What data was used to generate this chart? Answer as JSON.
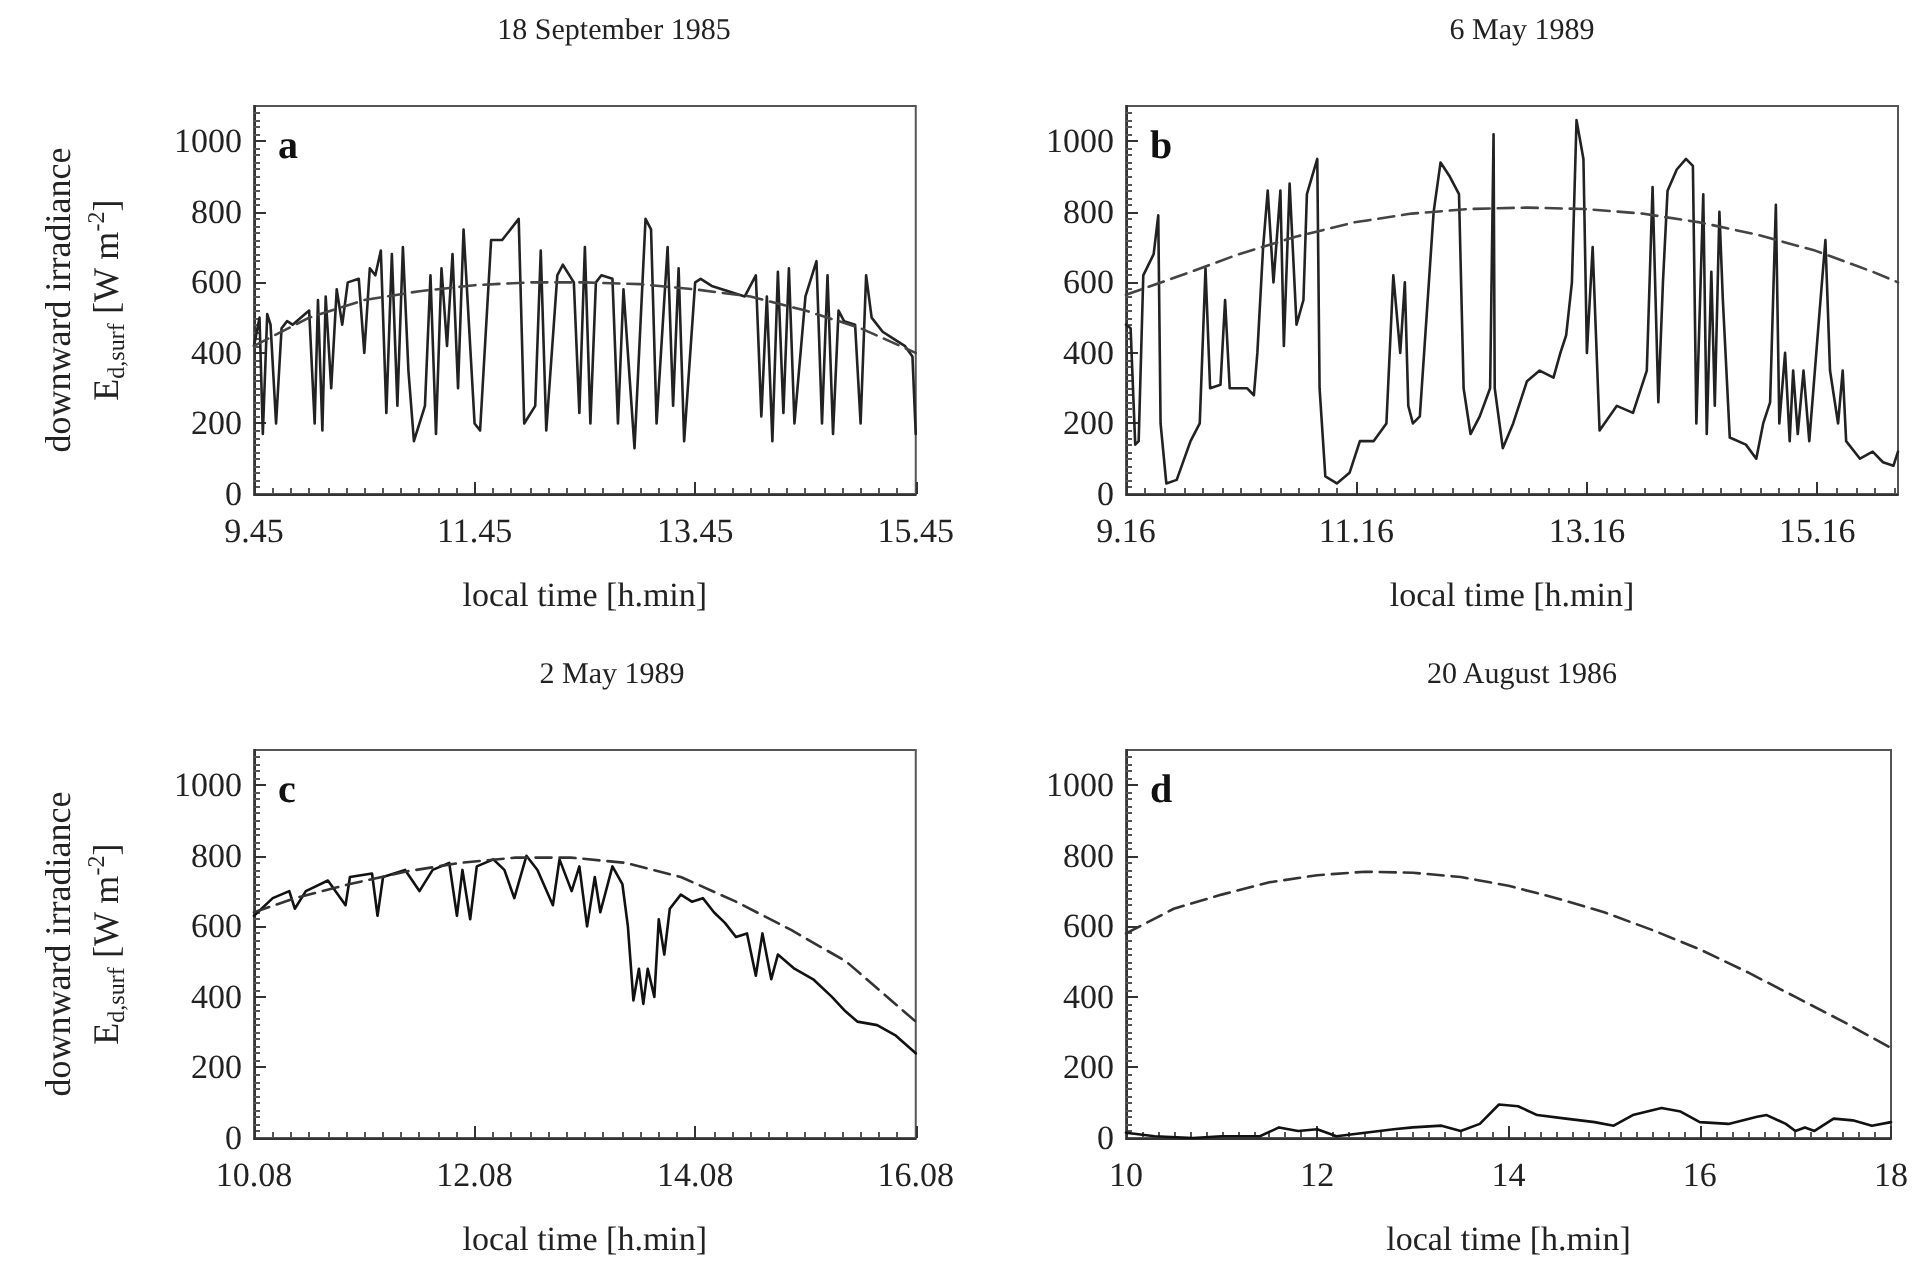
{
  "chart_data": [
    {
      "type": "line",
      "title": "18 September 1985",
      "xlabel": "local time [h.min]",
      "ylabel": "downward irradiance\nE$_{d,surf}$ [W m$^{-2}$]",
      "annotations": [
        "a"
      ],
      "marker": "none",
      "xlim": [
        9.45,
        15.45
      ],
      "xticks": [
        9.45,
        11.45,
        13.45,
        15.45
      ],
      "ylim": [
        0,
        1100
      ],
      "yticks": [
        0,
        200,
        400,
        600,
        800,
        1000
      ],
      "series": [
        {
          "color": "#222222",
          "line_style": "solid",
          "x": [
            9.45,
            9.5,
            9.53,
            9.57,
            9.6,
            9.65,
            9.7,
            9.75,
            9.8,
            9.95,
            10.0,
            10.03,
            10.07,
            10.1,
            10.15,
            10.2,
            10.25,
            10.3,
            10.4,
            10.45,
            10.5,
            10.55,
            10.6,
            10.65,
            10.7,
            10.75,
            10.8,
            10.85,
            10.9,
            11.0,
            11.05,
            11.1,
            11.15,
            11.2,
            11.25,
            11.3,
            11.35,
            11.45,
            11.5,
            11.6,
            11.7,
            11.85,
            11.9,
            12.0,
            12.05,
            12.1,
            12.2,
            12.25,
            12.35,
            12.4,
            12.45,
            12.5,
            12.55,
            12.6,
            12.7,
            12.75,
            12.8,
            12.9,
            13.0,
            13.05,
            13.1,
            13.2,
            13.25,
            13.3,
            13.35,
            13.45,
            13.5,
            13.6,
            13.7,
            13.8,
            13.9,
            14.0,
            14.05,
            14.1,
            14.15,
            14.2,
            14.25,
            14.3,
            14.35,
            14.45,
            14.55,
            14.6,
            14.65,
            14.7,
            14.75,
            14.8,
            14.9,
            14.95,
            15.0,
            15.05,
            15.15,
            15.25,
            15.35,
            15.42,
            15.45
          ],
          "values": [
            420,
            500,
            170,
            510,
            480,
            200,
            470,
            490,
            480,
            520,
            200,
            550,
            180,
            560,
            300,
            580,
            480,
            600,
            610,
            400,
            640,
            620,
            690,
            230,
            680,
            250,
            700,
            350,
            150,
            250,
            620,
            170,
            640,
            420,
            680,
            300,
            750,
            200,
            180,
            720,
            720,
            780,
            200,
            250,
            690,
            180,
            620,
            650,
            600,
            230,
            700,
            200,
            600,
            620,
            610,
            200,
            580,
            130,
            780,
            750,
            200,
            700,
            250,
            640,
            150,
            600,
            610,
            590,
            580,
            570,
            560,
            620,
            220,
            560,
            150,
            630,
            230,
            640,
            200,
            560,
            660,
            200,
            620,
            170,
            520,
            490,
            480,
            200,
            620,
            500,
            460,
            440,
            420,
            390,
            170
          ]
        },
        {
          "color": "#444444",
          "line_style": "dashed",
          "x": [
            9.45,
            9.95,
            10.45,
            10.95,
            11.45,
            11.95,
            12.45,
            12.95,
            13.45,
            13.95,
            14.45,
            14.95,
            15.45
          ],
          "values": [
            420,
            500,
            550,
            575,
            592,
            600,
            600,
            595,
            580,
            560,
            520,
            470,
            400
          ]
        }
      ]
    },
    {
      "type": "line",
      "title": "6 May 1989",
      "xlabel": "local time [h.min]",
      "annotations": [
        "b"
      ],
      "marker": "none",
      "xlim": [
        9.16,
        15.86
      ],
      "xticks": [
        9.16,
        11.16,
        13.16,
        15.16
      ],
      "ylim": [
        0,
        1100
      ],
      "yticks": [
        0,
        200,
        400,
        600,
        800,
        1000
      ],
      "series": [
        {
          "color": "#222222",
          "line_style": "solid",
          "x": [
            9.16,
            9.2,
            9.24,
            9.27,
            9.31,
            9.4,
            9.44,
            9.46,
            9.51,
            9.6,
            9.72,
            9.8,
            9.85,
            9.89,
            9.98,
            10.02,
            10.06,
            10.21,
            10.27,
            10.3,
            10.35,
            10.39,
            10.44,
            10.5,
            10.53,
            10.58,
            10.64,
            10.7,
            10.73,
            10.82,
            10.84,
            10.89,
            10.99,
            11.1,
            11.19,
            11.31,
            11.42,
            11.48,
            11.54,
            11.58,
            11.61,
            11.65,
            11.71,
            11.83,
            11.89,
            11.97,
            12.05,
            12.09,
            12.15,
            12.23,
            12.32,
            12.35,
            12.36,
            12.43,
            12.52,
            12.64,
            12.75,
            12.87,
            12.93,
            12.98,
            13.03,
            13.07,
            13.13,
            13.16,
            13.21,
            13.27,
            13.42,
            13.56,
            13.68,
            13.73,
            13.78,
            13.82,
            13.86,
            13.94,
            14.02,
            14.08,
            14.11,
            14.17,
            14.2,
            14.24,
            14.27,
            14.31,
            14.34,
            14.4,
            14.54,
            14.63,
            14.69,
            14.75,
            14.8,
            14.83,
            14.88,
            14.92,
            14.95,
            14.99,
            15.04,
            15.09,
            15.18,
            15.23,
            15.27,
            15.34,
            15.38,
            15.41,
            15.53,
            15.64,
            15.73,
            15.82,
            15.86
          ],
          "values": [
            480,
            470,
            140,
            150,
            620,
            680,
            790,
            200,
            30,
            40,
            150,
            200,
            640,
            300,
            310,
            550,
            300,
            300,
            280,
            400,
            700,
            860,
            600,
            860,
            420,
            880,
            480,
            550,
            850,
            950,
            300,
            50,
            30,
            60,
            150,
            150,
            200,
            620,
            400,
            600,
            250,
            200,
            220,
            800,
            940,
            900,
            850,
            300,
            170,
            220,
            300,
            1020,
            300,
            130,
            200,
            320,
            350,
            330,
            400,
            450,
            600,
            1060,
            950,
            400,
            700,
            180,
            250,
            230,
            350,
            870,
            260,
            600,
            860,
            920,
            950,
            930,
            200,
            850,
            170,
            630,
            250,
            800,
            550,
            160,
            140,
            100,
            200,
            260,
            820,
            200,
            400,
            150,
            350,
            170,
            350,
            150,
            520,
            720,
            350,
            200,
            350,
            150,
            100,
            120,
            90,
            80,
            120
          ]
        },
        {
          "color": "#444444",
          "line_style": "dashed",
          "x": [
            9.16,
            9.64,
            10.14,
            10.64,
            11.14,
            11.64,
            12.14,
            12.64,
            13.14,
            13.64,
            14.14,
            14.64,
            15.14,
            15.64,
            15.86
          ],
          "values": [
            565,
            620,
            680,
            730,
            770,
            795,
            808,
            812,
            808,
            795,
            770,
            735,
            690,
            630,
            600
          ]
        }
      ]
    },
    {
      "type": "line",
      "title": "2 May 1989",
      "xlabel": "local time [h.min]",
      "ylabel": "downward irradiance\nE$_{d,surf}$ [W m$^{-2}$]",
      "annotations": [
        "c"
      ],
      "marker": "none",
      "xlim": [
        10.08,
        16.08
      ],
      "xticks": [
        10.08,
        12.08,
        14.08,
        16.08
      ],
      "ylim": [
        0,
        1100
      ],
      "yticks": [
        0,
        200,
        400,
        600,
        800,
        1000
      ],
      "series": [
        {
          "color": "#111111",
          "line_style": "solid",
          "x": [
            10.08,
            10.25,
            10.4,
            10.45,
            10.55,
            10.75,
            10.91,
            10.95,
            11.15,
            11.2,
            11.25,
            11.45,
            11.58,
            11.7,
            11.85,
            11.92,
            11.97,
            12.04,
            12.1,
            12.25,
            12.35,
            12.44,
            12.55,
            12.65,
            12.79,
            12.85,
            12.96,
            13.03,
            13.1,
            13.17,
            13.22,
            13.33,
            13.42,
            13.47,
            13.52,
            13.57,
            13.61,
            13.65,
            13.71,
            13.75,
            13.8,
            13.85,
            13.95,
            14.05,
            14.15,
            14.25,
            14.35,
            14.45,
            14.55,
            14.63,
            14.69,
            14.77,
            14.83,
            14.98,
            15.15,
            15.32,
            15.44,
            15.55,
            15.73,
            15.9,
            16.08
          ],
          "values": [
            630,
            680,
            700,
            650,
            700,
            730,
            660,
            740,
            750,
            630,
            740,
            760,
            700,
            760,
            780,
            630,
            760,
            620,
            770,
            790,
            760,
            680,
            800,
            760,
            660,
            790,
            700,
            770,
            600,
            740,
            640,
            770,
            720,
            600,
            390,
            480,
            380,
            480,
            400,
            620,
            520,
            650,
            690,
            670,
            680,
            640,
            610,
            570,
            580,
            460,
            580,
            450,
            520,
            480,
            450,
            400,
            360,
            330,
            320,
            290,
            240
          ]
        },
        {
          "color": "#333333",
          "line_style": "dashed",
          "x": [
            10.08,
            10.45,
            10.95,
            11.45,
            11.95,
            12.45,
            12.95,
            13.45,
            13.95,
            14.45,
            14.95,
            15.45,
            16.08
          ],
          "values": [
            640,
            680,
            720,
            755,
            780,
            795,
            795,
            780,
            740,
            670,
            590,
            500,
            330
          ]
        }
      ]
    },
    {
      "type": "line",
      "title": "20 August 1986",
      "xlabel": "local time [h.min]",
      "annotations": [
        "d"
      ],
      "marker": "none",
      "xlim": [
        10,
        18
      ],
      "xticks": [
        10,
        12,
        14,
        16,
        18
      ],
      "ylim": [
        0,
        1100
      ],
      "yticks": [
        0,
        200,
        400,
        600,
        800,
        1000
      ],
      "series": [
        {
          "color": "#111111",
          "line_style": "solid",
          "x": [
            10,
            10.3,
            10.7,
            11,
            11.4,
            11.6,
            11.8,
            12,
            12.2,
            12.5,
            12.8,
            13,
            13.3,
            13.5,
            13.7,
            13.9,
            14.1,
            14.3,
            14.6,
            14.9,
            15.1,
            15.3,
            15.6,
            15.8,
            16,
            16.3,
            16.6,
            16.7,
            16.9,
            17.0,
            17.1,
            17.2,
            17.4,
            17.6,
            17.8,
            18
          ],
          "values": [
            15,
            5,
            0,
            5,
            5,
            30,
            20,
            25,
            5,
            15,
            25,
            30,
            35,
            20,
            40,
            95,
            90,
            65,
            55,
            45,
            35,
            65,
            85,
            75,
            45,
            40,
            60,
            65,
            40,
            20,
            30,
            20,
            55,
            50,
            35,
            45
          ]
        },
        {
          "color": "#333333",
          "line_style": "dashed",
          "x": [
            10,
            10.5,
            11,
            11.5,
            12,
            12.5,
            13,
            13.5,
            14,
            14.5,
            15,
            15.5,
            16,
            16.5,
            17,
            17.5,
            18
          ],
          "values": [
            580,
            650,
            690,
            725,
            745,
            755,
            752,
            740,
            715,
            680,
            640,
            590,
            535,
            470,
            400,
            330,
            255
          ]
        }
      ]
    }
  ]
}
